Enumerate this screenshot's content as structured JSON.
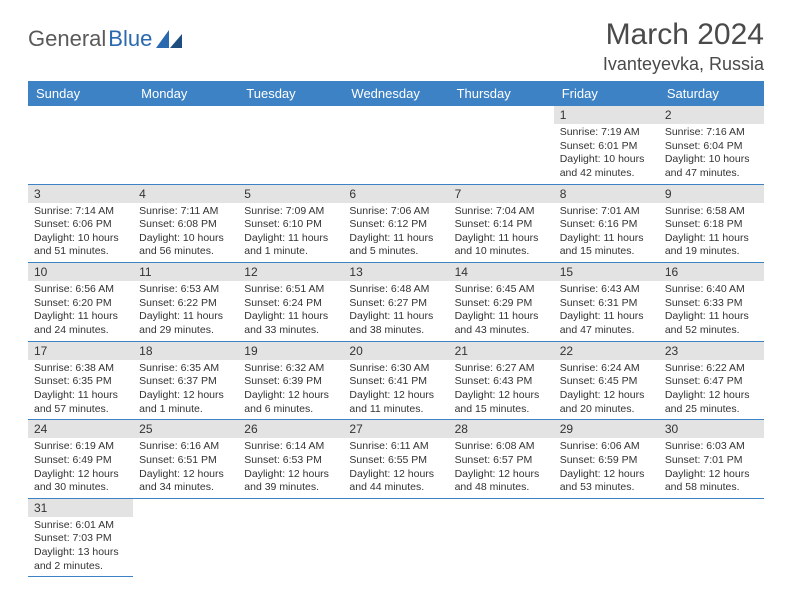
{
  "logo": {
    "text_a": "General",
    "text_b": "Blue"
  },
  "header": {
    "month": "March 2024",
    "location": "Ivanteyevka, Russia"
  },
  "colors": {
    "header_bg": "#3d82c4",
    "header_text": "#ffffff",
    "daynum_bg": "#e3e3e3",
    "border": "#3d82c4",
    "text": "#333333",
    "logo_gray": "#5a5a5a",
    "logo_blue": "#2a68b0"
  },
  "day_names": [
    "Sunday",
    "Monday",
    "Tuesday",
    "Wednesday",
    "Thursday",
    "Friday",
    "Saturday"
  ],
  "weeks": [
    [
      null,
      null,
      null,
      null,
      null,
      {
        "n": "1",
        "sr": "Sunrise: 7:19 AM",
        "ss": "Sunset: 6:01 PM",
        "d1": "Daylight: 10 hours",
        "d2": "and 42 minutes."
      },
      {
        "n": "2",
        "sr": "Sunrise: 7:16 AM",
        "ss": "Sunset: 6:04 PM",
        "d1": "Daylight: 10 hours",
        "d2": "and 47 minutes."
      }
    ],
    [
      {
        "n": "3",
        "sr": "Sunrise: 7:14 AM",
        "ss": "Sunset: 6:06 PM",
        "d1": "Daylight: 10 hours",
        "d2": "and 51 minutes."
      },
      {
        "n": "4",
        "sr": "Sunrise: 7:11 AM",
        "ss": "Sunset: 6:08 PM",
        "d1": "Daylight: 10 hours",
        "d2": "and 56 minutes."
      },
      {
        "n": "5",
        "sr": "Sunrise: 7:09 AM",
        "ss": "Sunset: 6:10 PM",
        "d1": "Daylight: 11 hours",
        "d2": "and 1 minute."
      },
      {
        "n": "6",
        "sr": "Sunrise: 7:06 AM",
        "ss": "Sunset: 6:12 PM",
        "d1": "Daylight: 11 hours",
        "d2": "and 5 minutes."
      },
      {
        "n": "7",
        "sr": "Sunrise: 7:04 AM",
        "ss": "Sunset: 6:14 PM",
        "d1": "Daylight: 11 hours",
        "d2": "and 10 minutes."
      },
      {
        "n": "8",
        "sr": "Sunrise: 7:01 AM",
        "ss": "Sunset: 6:16 PM",
        "d1": "Daylight: 11 hours",
        "d2": "and 15 minutes."
      },
      {
        "n": "9",
        "sr": "Sunrise: 6:58 AM",
        "ss": "Sunset: 6:18 PM",
        "d1": "Daylight: 11 hours",
        "d2": "and 19 minutes."
      }
    ],
    [
      {
        "n": "10",
        "sr": "Sunrise: 6:56 AM",
        "ss": "Sunset: 6:20 PM",
        "d1": "Daylight: 11 hours",
        "d2": "and 24 minutes."
      },
      {
        "n": "11",
        "sr": "Sunrise: 6:53 AM",
        "ss": "Sunset: 6:22 PM",
        "d1": "Daylight: 11 hours",
        "d2": "and 29 minutes."
      },
      {
        "n": "12",
        "sr": "Sunrise: 6:51 AM",
        "ss": "Sunset: 6:24 PM",
        "d1": "Daylight: 11 hours",
        "d2": "and 33 minutes."
      },
      {
        "n": "13",
        "sr": "Sunrise: 6:48 AM",
        "ss": "Sunset: 6:27 PM",
        "d1": "Daylight: 11 hours",
        "d2": "and 38 minutes."
      },
      {
        "n": "14",
        "sr": "Sunrise: 6:45 AM",
        "ss": "Sunset: 6:29 PM",
        "d1": "Daylight: 11 hours",
        "d2": "and 43 minutes."
      },
      {
        "n": "15",
        "sr": "Sunrise: 6:43 AM",
        "ss": "Sunset: 6:31 PM",
        "d1": "Daylight: 11 hours",
        "d2": "and 47 minutes."
      },
      {
        "n": "16",
        "sr": "Sunrise: 6:40 AM",
        "ss": "Sunset: 6:33 PM",
        "d1": "Daylight: 11 hours",
        "d2": "and 52 minutes."
      }
    ],
    [
      {
        "n": "17",
        "sr": "Sunrise: 6:38 AM",
        "ss": "Sunset: 6:35 PM",
        "d1": "Daylight: 11 hours",
        "d2": "and 57 minutes."
      },
      {
        "n": "18",
        "sr": "Sunrise: 6:35 AM",
        "ss": "Sunset: 6:37 PM",
        "d1": "Daylight: 12 hours",
        "d2": "and 1 minute."
      },
      {
        "n": "19",
        "sr": "Sunrise: 6:32 AM",
        "ss": "Sunset: 6:39 PM",
        "d1": "Daylight: 12 hours",
        "d2": "and 6 minutes."
      },
      {
        "n": "20",
        "sr": "Sunrise: 6:30 AM",
        "ss": "Sunset: 6:41 PM",
        "d1": "Daylight: 12 hours",
        "d2": "and 11 minutes."
      },
      {
        "n": "21",
        "sr": "Sunrise: 6:27 AM",
        "ss": "Sunset: 6:43 PM",
        "d1": "Daylight: 12 hours",
        "d2": "and 15 minutes."
      },
      {
        "n": "22",
        "sr": "Sunrise: 6:24 AM",
        "ss": "Sunset: 6:45 PM",
        "d1": "Daylight: 12 hours",
        "d2": "and 20 minutes."
      },
      {
        "n": "23",
        "sr": "Sunrise: 6:22 AM",
        "ss": "Sunset: 6:47 PM",
        "d1": "Daylight: 12 hours",
        "d2": "and 25 minutes."
      }
    ],
    [
      {
        "n": "24",
        "sr": "Sunrise: 6:19 AM",
        "ss": "Sunset: 6:49 PM",
        "d1": "Daylight: 12 hours",
        "d2": "and 30 minutes."
      },
      {
        "n": "25",
        "sr": "Sunrise: 6:16 AM",
        "ss": "Sunset: 6:51 PM",
        "d1": "Daylight: 12 hours",
        "d2": "and 34 minutes."
      },
      {
        "n": "26",
        "sr": "Sunrise: 6:14 AM",
        "ss": "Sunset: 6:53 PM",
        "d1": "Daylight: 12 hours",
        "d2": "and 39 minutes."
      },
      {
        "n": "27",
        "sr": "Sunrise: 6:11 AM",
        "ss": "Sunset: 6:55 PM",
        "d1": "Daylight: 12 hours",
        "d2": "and 44 minutes."
      },
      {
        "n": "28",
        "sr": "Sunrise: 6:08 AM",
        "ss": "Sunset: 6:57 PM",
        "d1": "Daylight: 12 hours",
        "d2": "and 48 minutes."
      },
      {
        "n": "29",
        "sr": "Sunrise: 6:06 AM",
        "ss": "Sunset: 6:59 PM",
        "d1": "Daylight: 12 hours",
        "d2": "and 53 minutes."
      },
      {
        "n": "30",
        "sr": "Sunrise: 6:03 AM",
        "ss": "Sunset: 7:01 PM",
        "d1": "Daylight: 12 hours",
        "d2": "and 58 minutes."
      }
    ],
    [
      {
        "n": "31",
        "sr": "Sunrise: 6:01 AM",
        "ss": "Sunset: 7:03 PM",
        "d1": "Daylight: 13 hours",
        "d2": "and 2 minutes."
      },
      null,
      null,
      null,
      null,
      null,
      null
    ]
  ]
}
